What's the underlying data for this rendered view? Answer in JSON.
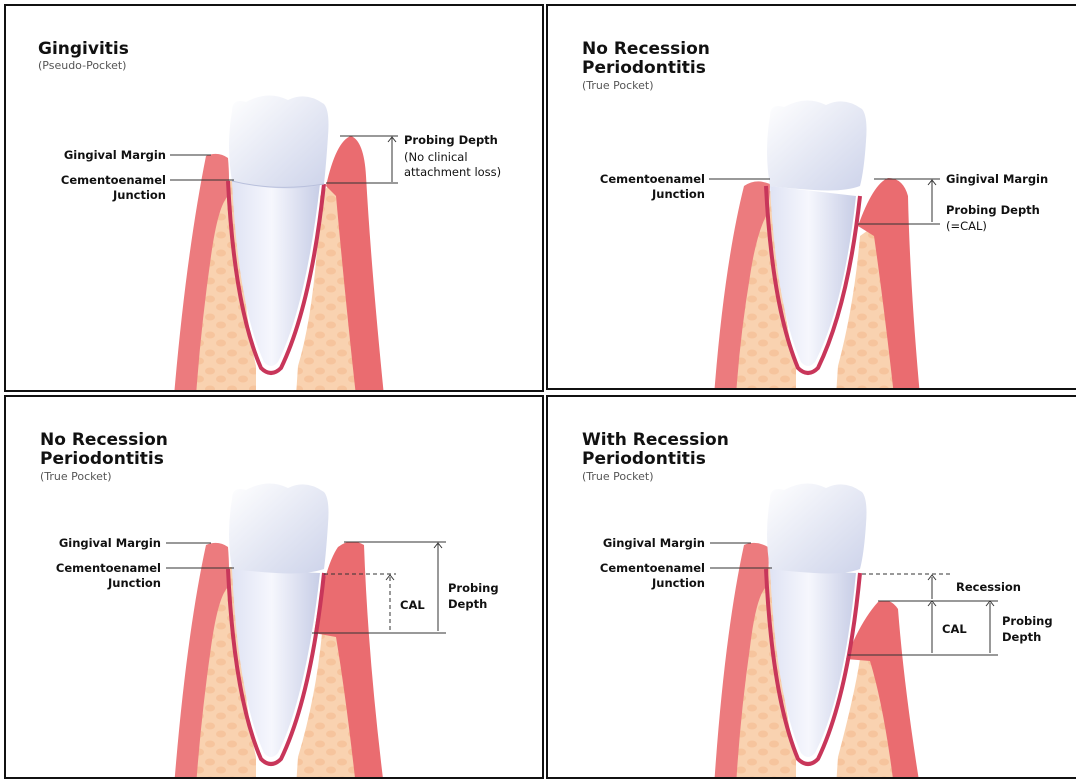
{
  "panels": [
    {
      "title_lines": [
        "Gingivitis"
      ],
      "subtitle": "(Pseudo-Pocket)",
      "labels": {
        "gingival_margin": "Gingival Margin",
        "cej_line1": "Cementoenamel",
        "cej_line2": "Junction",
        "probing": "Probing Depth",
        "note1": "(No clinical",
        "note2": "attachment loss)"
      }
    },
    {
      "title_lines": [
        "No Recession",
        "Periodontitis"
      ],
      "subtitle": "(True Pocket)",
      "labels": {
        "cej_line1": "Cementoenamel",
        "cej_line2": "Junction",
        "gingival_margin": "Gingival Margin",
        "probing": "Probing Depth",
        "note1": "(=CAL)"
      }
    },
    {
      "title_lines": [
        "No Recession",
        "Periodontitis"
      ],
      "subtitle": "(True Pocket)",
      "labels": {
        "gingival_margin": "Gingival Margin",
        "cej_line1": "Cementoenamel",
        "cej_line2": "Junction",
        "cal": "CAL",
        "probing1": "Probing",
        "probing2": "Depth"
      }
    },
    {
      "title_lines": [
        "With Recession",
        "Periodontitis"
      ],
      "subtitle": "(True Pocket)",
      "labels": {
        "gingival_margin": "Gingival Margin",
        "cej_line1": "Cementoenamel",
        "cej_line2": "Junction",
        "recession": "Recession",
        "cal": "CAL",
        "probing1": "Probing",
        "probing2": "Depth"
      }
    }
  ],
  "colors": {
    "gum": "#e96a6e",
    "gum_light": "#f29a99",
    "bone": "#f8cda9",
    "tooth": "#eef0fb",
    "tooth_shade": "#c9cfe6",
    "root_outline": "#c8365a"
  }
}
